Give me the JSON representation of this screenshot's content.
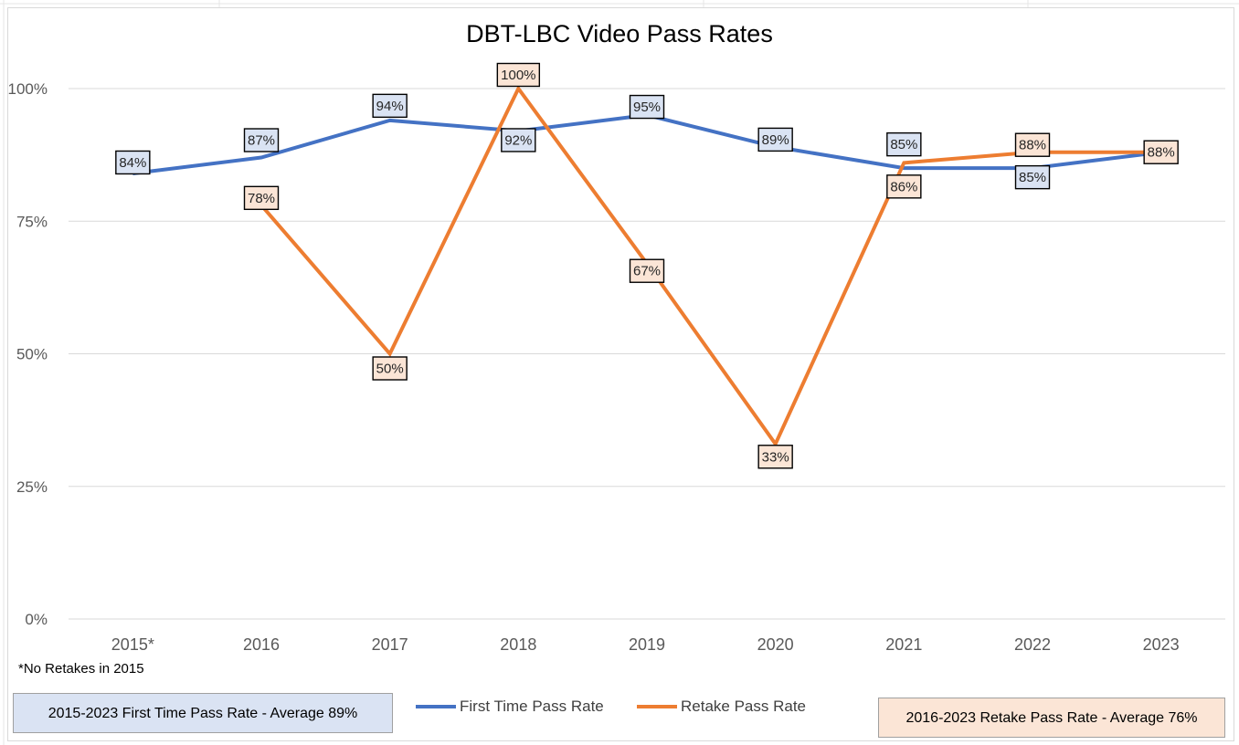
{
  "chart_data": {
    "type": "line",
    "title": "DBT-LBC Video Pass Rates",
    "categories": [
      "2015*",
      "2016",
      "2017",
      "2018",
      "2019",
      "2020",
      "2021",
      "2022",
      "2023"
    ],
    "series": [
      {
        "name": "First Time Pass Rate",
        "color": "#4472c4",
        "label_bg": "#dae3f3",
        "values": [
          84,
          87,
          94,
          92,
          95,
          89,
          85,
          85,
          88
        ],
        "labels": [
          "84%",
          "87%",
          "94%",
          "92%",
          "95%",
          "89%",
          "85%",
          "85%",
          ""
        ]
      },
      {
        "name": "Retake Pass Rate",
        "color": "#ed7d31",
        "label_bg": "#fbe5d6",
        "values": [
          null,
          78,
          50,
          100,
          67,
          33,
          86,
          88,
          88
        ],
        "labels": [
          "",
          "78%",
          "50%",
          "100%",
          "67%",
          "33%",
          "86%",
          "88%",
          "88%"
        ]
      }
    ],
    "ylim": [
      0,
      100
    ],
    "yticks": [
      0,
      25,
      50,
      75,
      100
    ],
    "ytick_labels": [
      "0%",
      "25%",
      "50%",
      "75%",
      "100%"
    ],
    "grid": true,
    "legend_position": "bottom-center"
  },
  "footnote": "*No Retakes in 2015",
  "summary_first": "2015-2023 First Time Pass Rate - Average 89%",
  "summary_retake": "2016-2023 Retake Pass Rate - Average 76%",
  "legend": {
    "first_label": "First Time Pass Rate",
    "retake_label": "Retake Pass Rate"
  }
}
